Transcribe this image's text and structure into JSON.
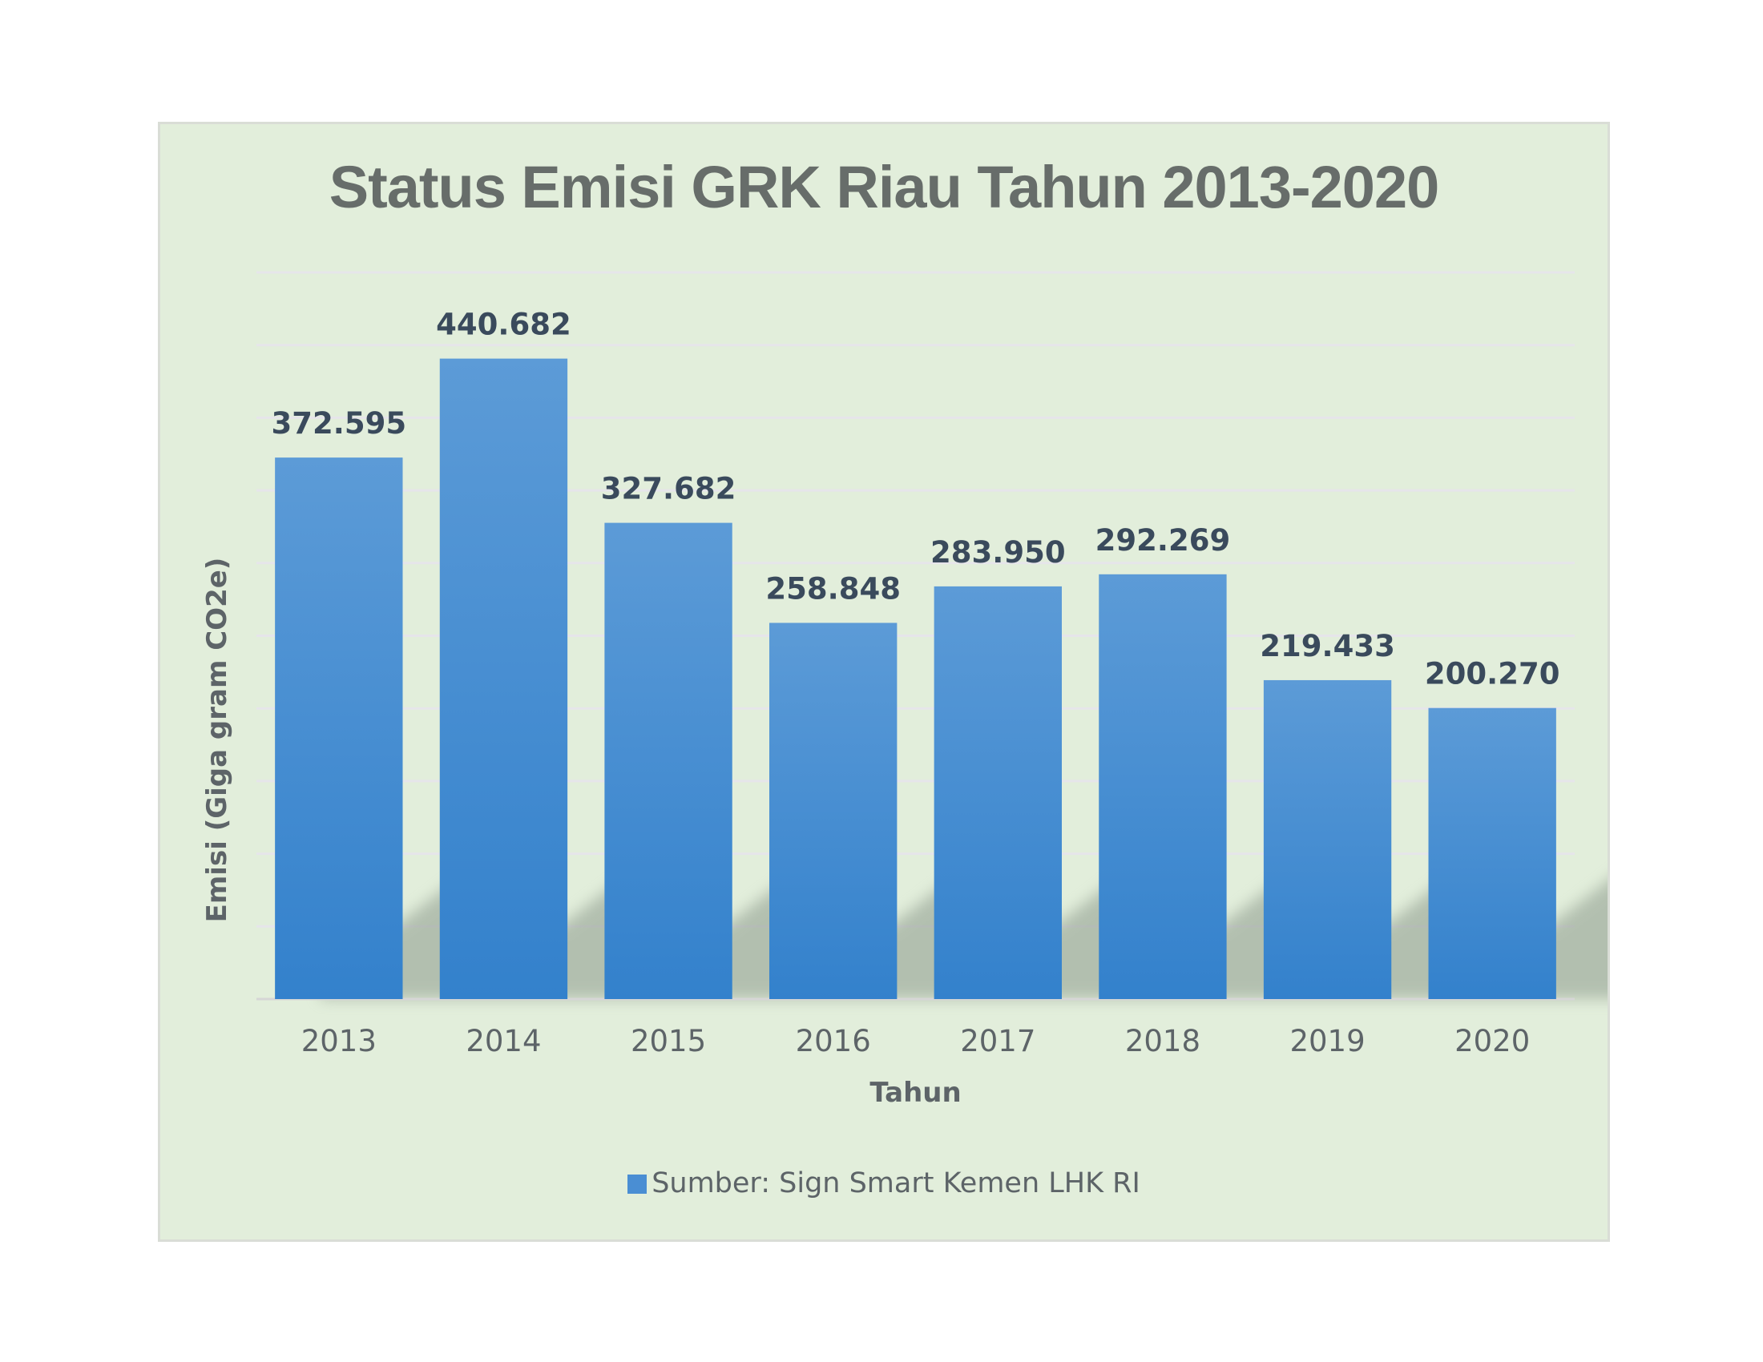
{
  "chart_data": {
    "type": "bar",
    "title": "Status Emisi GRK Riau Tahun 2013-2020",
    "xlabel": "Tahun",
    "ylabel": "Emisi (Giga gram CO2e)",
    "categories": [
      "2013",
      "2014",
      "2015",
      "2016",
      "2017",
      "2018",
      "2019",
      "2020"
    ],
    "series": [
      {
        "name": "Sumber: Sign Smart Kemen LHK RI",
        "values": [
          372.595,
          440.682,
          327.682,
          258.848,
          283.95,
          292.269,
          219.433,
          200.27
        ],
        "labels": [
          "372.595",
          "440.682",
          "327.682",
          "258.848",
          "283.950",
          "292.269",
          "219.433",
          "200.270"
        ]
      }
    ],
    "ylim": [
      0,
      500
    ],
    "grid": true,
    "legend_position": "bottom",
    "colors": {
      "bar_top": "#5c9bd7",
      "bar_bottom": "#3381cc",
      "background": "#e2eedb",
      "grid": "#e6e5ea"
    }
  }
}
